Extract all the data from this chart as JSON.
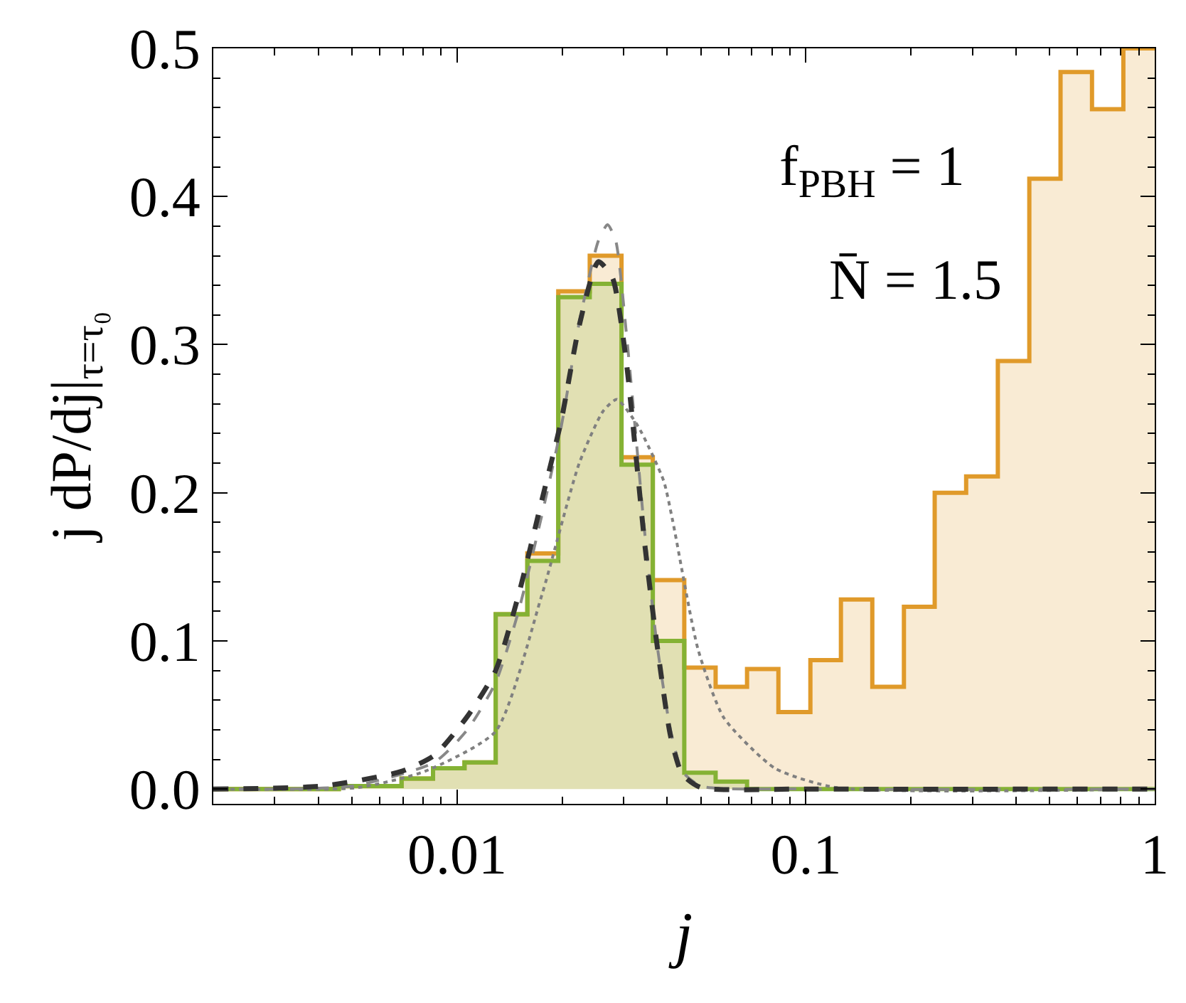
{
  "chart_data": {
    "type": "histogram",
    "xlabel": "j",
    "ylabel": "j dP/dj|$_{τ=τ₀}$",
    "annotations": [
      "f$_{PBH}$ = 1",
      "N̄ = 1.5"
    ],
    "bins": [
      0.002,
      0.00246,
      0.00303,
      0.00372,
      0.00458,
      0.00564,
      0.00693,
      0.00853,
      0.0105,
      0.0129,
      0.0159,
      0.0195,
      0.024,
      0.0296,
      0.0364,
      0.0448,
      0.0551,
      0.0678,
      0.0834,
      0.103,
      0.126,
      0.155,
      0.191,
      0.234,
      0.288,
      0.355,
      0.437,
      0.537,
      0.661,
      0.813,
      1
    ],
    "series": [
      {
        "color": "#e09a2a",
        "values": [
          0,
          0,
          0,
          0,
          0.002,
          0.002,
          0.007,
          0.014,
          0.018,
          0.118,
          0.159,
          0.336,
          0.36,
          0.224,
          0.141,
          0.082,
          0.069,
          0.081,
          0.052,
          0.087,
          0.128,
          0.069,
          0.123,
          0.2,
          0.211,
          0.289,
          0.412,
          0.484,
          0.459,
          0.5
        ]
      },
      {
        "color": "#84b234",
        "values": [
          0,
          0,
          0,
          0,
          0.002,
          0.002,
          0.007,
          0.014,
          0.018,
          0.118,
          0.154,
          0.332,
          0.341,
          0.219,
          0.1,
          0.011,
          0.005,
          0,
          0,
          0,
          0,
          0,
          0,
          0,
          0,
          0,
          0,
          0,
          0,
          0
        ]
      },
      {
        "type": "line",
        "color": "#808080",
        "line_style": "dotted",
        "x": [
          0.002,
          0.0052,
          0.0081,
          0.0129,
          0.0175,
          0.0224,
          0.0262,
          0.0287,
          0.033,
          0.0391,
          0.0415,
          0.0491,
          0.0582,
          0.0815,
          0.122,
          1
        ],
        "values": [
          0,
          0.001,
          0.012,
          0.039,
          0.131,
          0.22,
          0.255,
          0.263,
          0.245,
          0.208,
          0.181,
          0.094,
          0.048,
          0.014,
          0.001,
          0
        ]
      },
      {
        "type": "line",
        "color": "#888888",
        "line_style": "dashed",
        "x": [
          0.002,
          0.005,
          0.0086,
          0.0107,
          0.0129,
          0.015,
          0.0175,
          0.0199,
          0.0224,
          0.0254,
          0.027,
          0.0285,
          0.0305,
          0.0325,
          0.0346,
          0.0373,
          0.0409,
          0.0442,
          0.05,
          0.1,
          1
        ],
        "values": [
          0,
          0.002,
          0.018,
          0.04,
          0.072,
          0.12,
          0.185,
          0.245,
          0.315,
          0.37,
          0.381,
          0.37,
          0.31,
          0.24,
          0.17,
          0.1,
          0.04,
          0.012,
          0.002,
          0,
          0
        ]
      },
      {
        "type": "line",
        "color": "#333333",
        "line_style": "dashed",
        "x": [
          0.002,
          0.00412,
          0.00695,
          0.00863,
          0.0107,
          0.0129,
          0.015,
          0.0175,
          0.0199,
          0.0224,
          0.0254,
          0.0279,
          0.0305,
          0.0325,
          0.0346,
          0.0373,
          0.0409,
          0.0442,
          0.05,
          0.1,
          1
        ],
        "values": [
          0,
          0.002,
          0.012,
          0.023,
          0.049,
          0.08,
          0.131,
          0.195,
          0.249,
          0.313,
          0.356,
          0.345,
          0.29,
          0.227,
          0.163,
          0.1,
          0.036,
          0.01,
          0.001,
          0,
          0
        ]
      }
    ],
    "log": "x",
    "xlim": [
      0.002,
      1
    ],
    "xticks": [
      0.01,
      0.1,
      1
    ],
    "ylim": [
      -0.01,
      0.5
    ],
    "yticks": [
      {
        "value": 0,
        "label": "0.0"
      },
      0.1,
      0.2,
      0.3,
      0.4,
      0.5
    ]
  }
}
